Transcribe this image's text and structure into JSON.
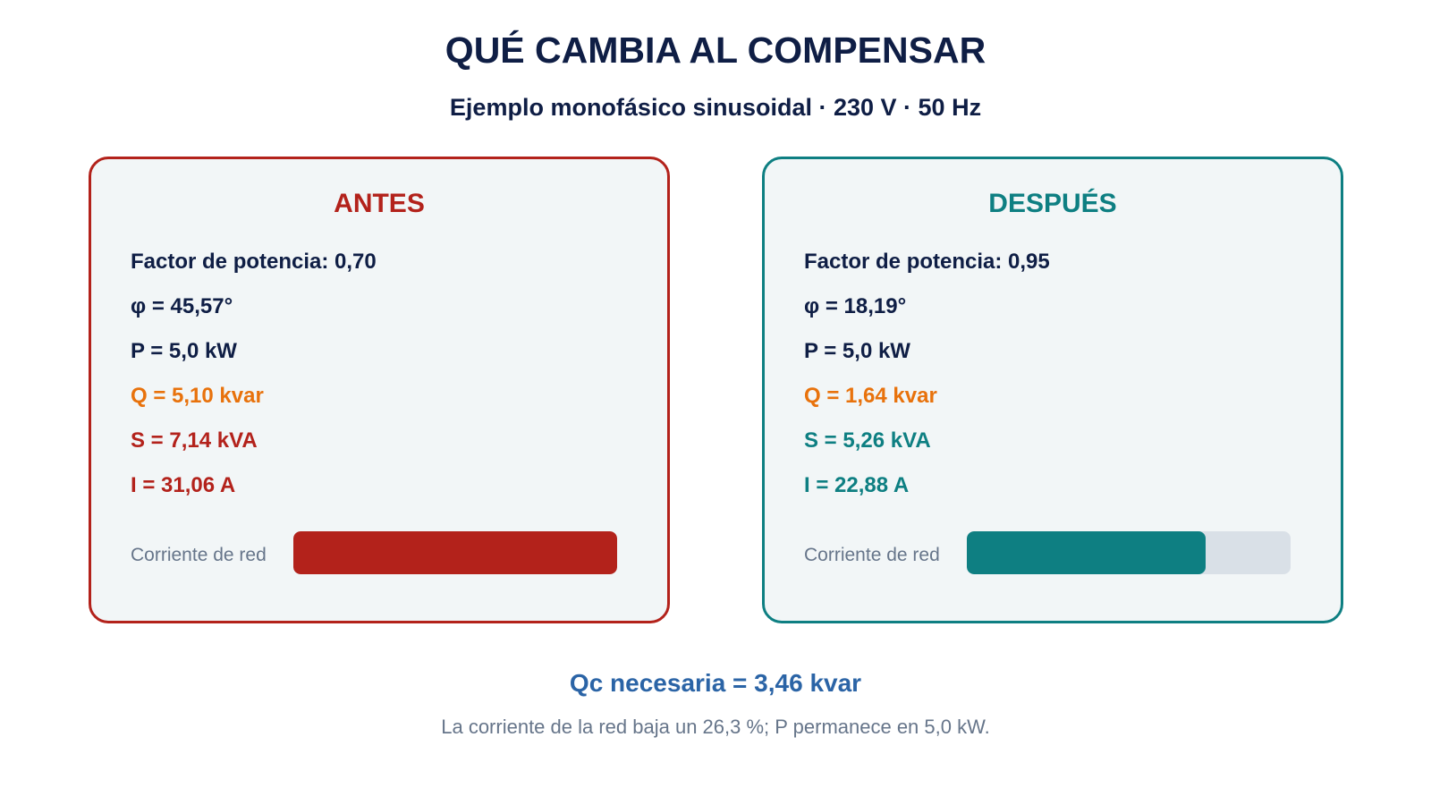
{
  "title": "QUÉ CAMBIA AL COMPENSAR",
  "subtitle": "Ejemplo monofásico sinusoidal · 230 V · 50 Hz",
  "colors": {
    "navy": "#0f1e45",
    "before": "#b3221b",
    "after": "#0e7f82",
    "reactive": "#e8720c",
    "qc": "#2b64a6",
    "muted": "#66758a",
    "track": "#d9e0e7"
  },
  "before": {
    "heading": "ANTES",
    "pf": "Factor de potencia: 0,70",
    "phi": "φ = 45,57°",
    "p": "P = 5,0 kW",
    "q": "Q = 5,10 kvar",
    "s": "S = 7,14 kVA",
    "i": "I = 31,06 A",
    "bar_label": "Corriente de red",
    "current_fraction": 1.0
  },
  "after": {
    "heading": "DESPUÉS",
    "pf": "Factor de potencia: 0,95",
    "phi": "φ = 18,19°",
    "p": "P = 5,0 kW",
    "q": "Q = 1,64 kvar",
    "s": "S = 5,26 kVA",
    "i": "I = 22,88 A",
    "bar_label": "Corriente de red",
    "current_fraction": 0.737
  },
  "qc_text": "Qc necesaria = 3,46 kvar",
  "note": "La corriente de la red baja un 26,3 %; P permanece en 5,0 kW."
}
